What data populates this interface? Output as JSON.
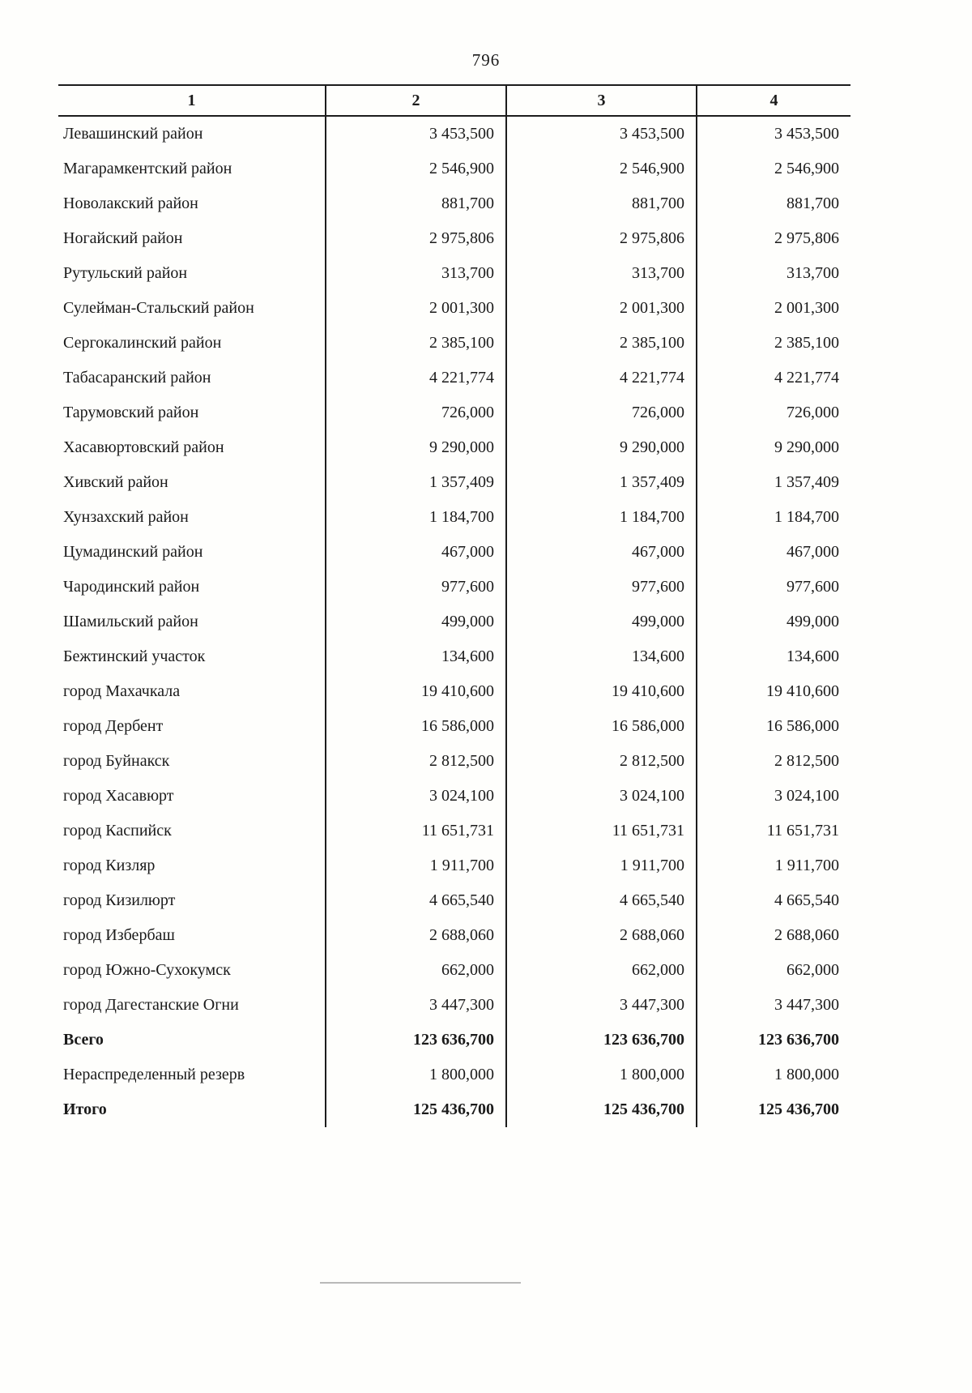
{
  "page": {
    "number": "796"
  },
  "table": {
    "headers": [
      "1",
      "2",
      "3",
      "4"
    ],
    "rows": [
      {
        "label": "Левашинский район",
        "values": [
          "3 453,500",
          "3 453,500",
          "3 453,500"
        ],
        "bold": false
      },
      {
        "label": "Магарамкентский район",
        "values": [
          "2 546,900",
          "2 546,900",
          "2 546,900"
        ],
        "bold": false
      },
      {
        "label": "Новолакский район",
        "values": [
          "881,700",
          "881,700",
          "881,700"
        ],
        "bold": false
      },
      {
        "label": "Ногайский район",
        "values": [
          "2 975,806",
          "2 975,806",
          "2 975,806"
        ],
        "bold": false
      },
      {
        "label": "Рутульский район",
        "values": [
          "313,700",
          "313,700",
          "313,700"
        ],
        "bold": false
      },
      {
        "label": "Сулейман-Стальский район",
        "values": [
          "2 001,300",
          "2 001,300",
          "2 001,300"
        ],
        "bold": false
      },
      {
        "label": "Сергокалинский район",
        "values": [
          "2 385,100",
          "2 385,100",
          "2 385,100"
        ],
        "bold": false
      },
      {
        "label": "Табасаранский район",
        "values": [
          "4 221,774",
          "4 221,774",
          "4 221,774"
        ],
        "bold": false
      },
      {
        "label": "Тарумовский район",
        "values": [
          "726,000",
          "726,000",
          "726,000"
        ],
        "bold": false
      },
      {
        "label": "Хасавюртовский район",
        "values": [
          "9 290,000",
          "9 290,000",
          "9 290,000"
        ],
        "bold": false
      },
      {
        "label": "Хивский район",
        "values": [
          "1 357,409",
          "1 357,409",
          "1 357,409"
        ],
        "bold": false
      },
      {
        "label": "Хунзахский район",
        "values": [
          "1 184,700",
          "1 184,700",
          "1 184,700"
        ],
        "bold": false
      },
      {
        "label": "Цумадинский район",
        "values": [
          "467,000",
          "467,000",
          "467,000"
        ],
        "bold": false
      },
      {
        "label": "Чародинский район",
        "values": [
          "977,600",
          "977,600",
          "977,600"
        ],
        "bold": false
      },
      {
        "label": "Шамильский район",
        "values": [
          "499,000",
          "499,000",
          "499,000"
        ],
        "bold": false
      },
      {
        "label": "Бежтинский участок",
        "values": [
          "134,600",
          "134,600",
          "134,600"
        ],
        "bold": false
      },
      {
        "label": "город Махачкала",
        "values": [
          "19 410,600",
          "19 410,600",
          "19 410,600"
        ],
        "bold": false
      },
      {
        "label": "город Дербент",
        "values": [
          "16 586,000",
          "16 586,000",
          "16 586,000"
        ],
        "bold": false
      },
      {
        "label": "город Буйнакск",
        "values": [
          "2 812,500",
          "2 812,500",
          "2 812,500"
        ],
        "bold": false
      },
      {
        "label": "город Хасавюрт",
        "values": [
          "3 024,100",
          "3 024,100",
          "3 024,100"
        ],
        "bold": false
      },
      {
        "label": "город Каспийск",
        "values": [
          "11 651,731",
          "11 651,731",
          "11 651,731"
        ],
        "bold": false
      },
      {
        "label": "город Кизляр",
        "values": [
          "1 911,700",
          "1 911,700",
          "1 911,700"
        ],
        "bold": false
      },
      {
        "label": "город Кизилюрт",
        "values": [
          "4 665,540",
          "4 665,540",
          "4 665,540"
        ],
        "bold": false
      },
      {
        "label": "город Избербаш",
        "values": [
          "2 688,060",
          "2 688,060",
          "2 688,060"
        ],
        "bold": false
      },
      {
        "label": "город Южно-Сухокумск",
        "values": [
          "662,000",
          "662,000",
          "662,000"
        ],
        "bold": false
      },
      {
        "label": "город Дагестанские Огни",
        "values": [
          "3 447,300",
          "3 447,300",
          "3 447,300"
        ],
        "bold": false
      },
      {
        "label": "Всего",
        "values": [
          "123 636,700",
          "123 636,700",
          "123 636,700"
        ],
        "bold": true
      },
      {
        "label": "Нераспределенный резерв",
        "values": [
          "1 800,000",
          "1 800,000",
          "1 800,000"
        ],
        "bold": false
      },
      {
        "label": "Итого",
        "values": [
          "125 436,700",
          "125 436,700",
          "125 436,700"
        ],
        "bold": true
      }
    ]
  }
}
